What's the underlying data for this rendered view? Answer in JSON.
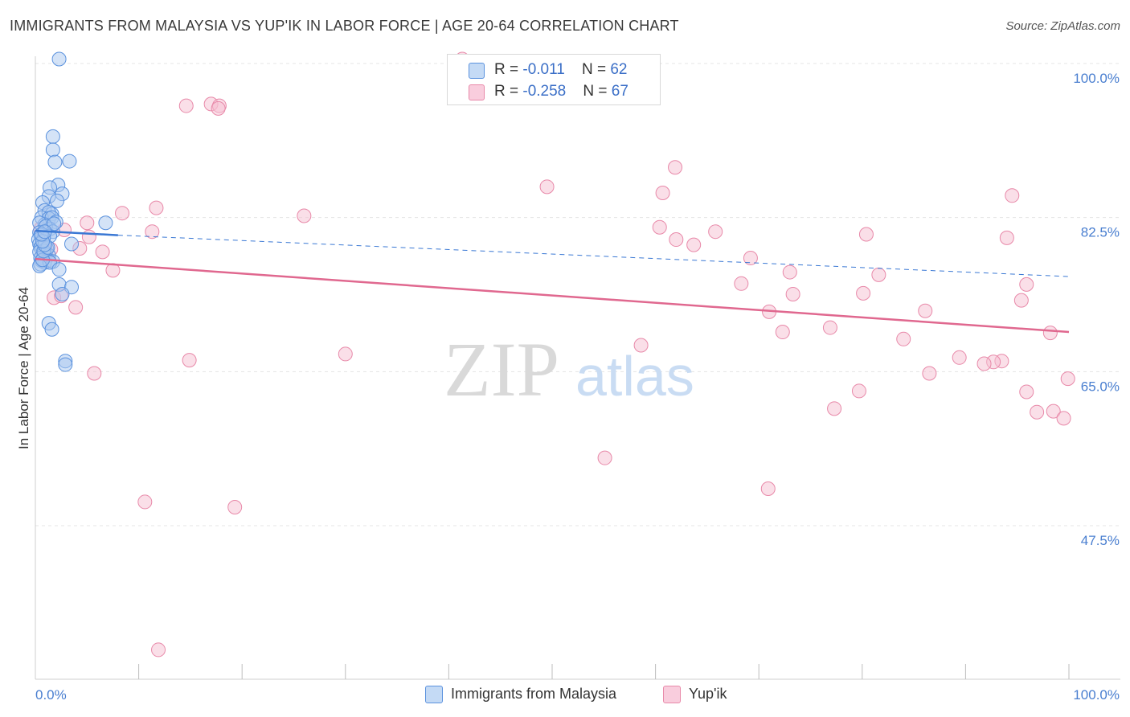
{
  "title": "IMMIGRANTS FROM MALAYSIA VS YUP'IK IN LABOR FORCE | AGE 20-64 CORRELATION CHART",
  "source": "Source: ZipAtlas.com",
  "watermark": {
    "zip": "ZIP",
    "atlas": "atlas"
  },
  "legend": {
    "rows": [
      {
        "r_label": "R = ",
        "r_value": "-0.011",
        "n_label": "N = ",
        "n_value": "62"
      },
      {
        "r_label": "R = ",
        "r_value": "-0.258",
        "n_label": "N = ",
        "n_value": "67"
      }
    ]
  },
  "colors": {
    "blue_fill": "#a9c8f0",
    "blue_stroke": "#5b92de",
    "blue_line": "#3a78d4",
    "pink_fill": "#f6bfd2",
    "pink_stroke": "#e889a9",
    "pink_line": "#e0688f",
    "grid": "#e4e4e4",
    "axis_text": "#4a7fd0"
  },
  "chart_data": {
    "type": "scatter",
    "title": "IMMIGRANTS FROM MALAYSIA VS YUP'IK IN LABOR FORCE | AGE 20-64 CORRELATION CHART",
    "xlabel": "",
    "ylabel": "In Labor Force | Age 20-64",
    "xlim": [
      0,
      100
    ],
    "ylim": [
      31,
      104
    ],
    "x_tick_labels": [
      "0.0%",
      "100.0%"
    ],
    "y_ticks": [
      47.5,
      65.0,
      82.5,
      100.0
    ],
    "y_tick_labels": [
      "47.5%",
      "65.0%",
      "82.5%",
      "100.0%"
    ],
    "grid": true,
    "series": [
      {
        "name": "Immigrants from Malaysia",
        "color": "#5b92de",
        "trend": {
          "x": [
            0,
            8
          ],
          "y": [
            81.0,
            80.5
          ],
          "dashed_to": [
            100,
            75.8
          ]
        },
        "points": [
          [
            2.3,
            100.5
          ],
          [
            1.7,
            91.7
          ],
          [
            1.7,
            90.2
          ],
          [
            1.9,
            88.8
          ],
          [
            3.3,
            88.9
          ],
          [
            2.2,
            86.2
          ],
          [
            1.4,
            85.9
          ],
          [
            2.6,
            85.2
          ],
          [
            1.3,
            84.9
          ],
          [
            2.1,
            84.4
          ],
          [
            0.7,
            84.2
          ],
          [
            0.9,
            83.3
          ],
          [
            1.6,
            82.9
          ],
          [
            1.3,
            83.1
          ],
          [
            0.6,
            82.5
          ],
          [
            1.3,
            82.4
          ],
          [
            1.6,
            82.5
          ],
          [
            2.0,
            82.0
          ],
          [
            0.9,
            81.7
          ],
          [
            0.4,
            81.9
          ],
          [
            6.8,
            81.9
          ],
          [
            1.4,
            81.2
          ],
          [
            1.0,
            81.5
          ],
          [
            1.7,
            80.9
          ],
          [
            0.4,
            80.8
          ],
          [
            0.5,
            80.5
          ],
          [
            1.4,
            80.4
          ],
          [
            0.8,
            80.2
          ],
          [
            0.3,
            80.0
          ],
          [
            0.4,
            79.5
          ],
          [
            0.6,
            79.2
          ],
          [
            0.5,
            79.1
          ],
          [
            1.1,
            79.0
          ],
          [
            0.4,
            78.6
          ],
          [
            1.0,
            78.3
          ],
          [
            3.5,
            79.5
          ],
          [
            0.8,
            78.4
          ],
          [
            1.3,
            78.2
          ],
          [
            0.5,
            77.9
          ],
          [
            0.6,
            77.6
          ],
          [
            1.3,
            77.6
          ],
          [
            0.9,
            77.4
          ],
          [
            1.7,
            77.5
          ],
          [
            0.5,
            77.2
          ],
          [
            1.4,
            77.4
          ],
          [
            0.4,
            77.0
          ],
          [
            2.3,
            76.6
          ],
          [
            0.7,
            77.7
          ],
          [
            0.8,
            78.7
          ],
          [
            1.2,
            79.1
          ],
          [
            0.9,
            79.4
          ],
          [
            0.7,
            79.8
          ],
          [
            2.3,
            74.9
          ],
          [
            3.5,
            74.6
          ],
          [
            2.6,
            73.8
          ],
          [
            1.3,
            70.5
          ],
          [
            1.6,
            69.8
          ],
          [
            2.9,
            66.2
          ],
          [
            2.9,
            65.8
          ],
          [
            0.6,
            80.6
          ],
          [
            1.8,
            81.8
          ],
          [
            0.9,
            80.9
          ]
        ]
      },
      {
        "name": "Yup'ik",
        "color": "#e889a9",
        "trend": {
          "x": [
            0,
            100
          ],
          "y": [
            77.8,
            69.5
          ]
        },
        "points": [
          [
            41.3,
            100.5
          ],
          [
            14.6,
            95.2
          ],
          [
            17.0,
            95.4
          ],
          [
            17.8,
            95.2
          ],
          [
            17.7,
            94.9
          ],
          [
            61.9,
            88.2
          ],
          [
            49.5,
            86.0
          ],
          [
            60.7,
            85.3
          ],
          [
            94.5,
            85.0
          ],
          [
            11.7,
            83.6
          ],
          [
            8.4,
            83.0
          ],
          [
            26.0,
            82.7
          ],
          [
            5.0,
            81.9
          ],
          [
            2.8,
            81.1
          ],
          [
            0.5,
            81.2
          ],
          [
            11.3,
            80.9
          ],
          [
            65.8,
            80.9
          ],
          [
            80.4,
            80.6
          ],
          [
            60.4,
            81.4
          ],
          [
            5.2,
            80.3
          ],
          [
            94.0,
            80.2
          ],
          [
            62.0,
            80.0
          ],
          [
            63.7,
            79.4
          ],
          [
            4.3,
            79.0
          ],
          [
            6.5,
            78.6
          ],
          [
            69.2,
            77.9
          ],
          [
            1.5,
            78.9
          ],
          [
            1.0,
            78.7
          ],
          [
            0.7,
            79.7
          ],
          [
            7.5,
            76.5
          ],
          [
            73.0,
            76.3
          ],
          [
            81.6,
            76.0
          ],
          [
            68.3,
            75.0
          ],
          [
            95.9,
            74.9
          ],
          [
            73.3,
            73.8
          ],
          [
            80.1,
            73.9
          ],
          [
            1.8,
            73.4
          ],
          [
            2.5,
            73.6
          ],
          [
            95.4,
            73.1
          ],
          [
            3.9,
            72.3
          ],
          [
            71.0,
            71.8
          ],
          [
            86.1,
            71.9
          ],
          [
            76.9,
            70.0
          ],
          [
            72.3,
            69.5
          ],
          [
            98.2,
            69.4
          ],
          [
            84.0,
            68.7
          ],
          [
            58.6,
            68.0
          ],
          [
            30.0,
            67.0
          ],
          [
            89.4,
            66.6
          ],
          [
            14.9,
            66.3
          ],
          [
            93.5,
            66.2
          ],
          [
            92.7,
            66.1
          ],
          [
            91.8,
            65.9
          ],
          [
            5.7,
            64.8
          ],
          [
            86.5,
            64.8
          ],
          [
            99.9,
            64.2
          ],
          [
            79.7,
            62.8
          ],
          [
            95.9,
            62.7
          ],
          [
            77.3,
            60.8
          ],
          [
            96.9,
            60.4
          ],
          [
            98.5,
            60.5
          ],
          [
            99.5,
            59.7
          ],
          [
            55.1,
            55.2
          ],
          [
            70.9,
            51.7
          ],
          [
            10.6,
            50.2
          ],
          [
            19.3,
            49.6
          ],
          [
            11.9,
            33.4
          ]
        ]
      }
    ]
  },
  "bottom_legend": [
    {
      "label": "Immigrants from Malaysia"
    },
    {
      "label": "Yup'ik"
    }
  ]
}
